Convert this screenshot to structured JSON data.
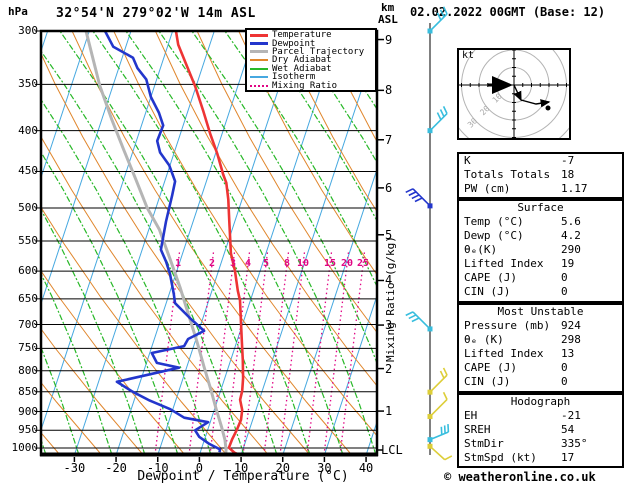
{
  "header": {
    "pressure_unit": "hPa",
    "title": "32°54'N 279°02'W 14m ASL",
    "alt_unit_km": "km",
    "alt_unit_asl": "ASL",
    "datetime": "02.02.2022 00GMT (Base: 12)"
  },
  "axes": {
    "pressure_ticks": [
      300,
      350,
      400,
      450,
      500,
      550,
      600,
      650,
      700,
      750,
      800,
      850,
      900,
      950,
      1000
    ],
    "temp_ticks": [
      -30,
      -20,
      -10,
      0,
      10,
      20,
      30,
      40
    ],
    "temp_axis_title": "Dewpoint / Temperature (°C)",
    "km_ticks": [
      1,
      2,
      3,
      4,
      5,
      6,
      7,
      8,
      9
    ],
    "lcl_label": "LCL",
    "mixing_axis_title": "Mixing Ratio (g/kg)",
    "mixing_ratio_labels": [
      "1",
      "2",
      "3",
      "4",
      "5",
      "8",
      "10",
      "15",
      "20",
      "25"
    ]
  },
  "legend": {
    "items": [
      {
        "label": "Temperature",
        "color_key": "temperature",
        "style": "thick"
      },
      {
        "label": "Dewpoint",
        "color_key": "dewpoint",
        "style": "thick"
      },
      {
        "label": "Parcel Trajectory",
        "color_key": "parcel",
        "style": "thick"
      },
      {
        "label": "Dry Adiabat",
        "color_key": "dry_adiabat",
        "style": "thin"
      },
      {
        "label": "Wet Adiabat",
        "color_key": "wet_adiabat",
        "style": "thin"
      },
      {
        "label": "Isotherm",
        "color_key": "isotherm",
        "style": "thin"
      },
      {
        "label": "Mixing Ratio",
        "color_key": "mixing_ratio",
        "style": "dotted"
      }
    ]
  },
  "chart_data": {
    "type": "line",
    "variant": "skew-t-log-p",
    "xlabel": "Dewpoint / Temperature (°C)",
    "x_range_C": [
      -35,
      42
    ],
    "pressure_range_hPa": [
      300,
      1020
    ],
    "grid": true,
    "legend_position": "top-right",
    "series": [
      {
        "name": "Temperature",
        "units": [
          "hPa",
          "degC"
        ],
        "points": [
          [
            295,
            -39.9
          ],
          [
            312,
            -37.6
          ],
          [
            333,
            -33.6
          ],
          [
            352,
            -30.2
          ],
          [
            378,
            -26.3
          ],
          [
            404,
            -22.8
          ],
          [
            428,
            -19.5
          ],
          [
            454,
            -16.5
          ],
          [
            465,
            -15.1
          ],
          [
            488,
            -13.3
          ],
          [
            517,
            -11.5
          ],
          [
            570,
            -8.4
          ],
          [
            599,
            -6.1
          ],
          [
            635,
            -3.8
          ],
          [
            653,
            -2.5
          ],
          [
            692,
            -0.7
          ],
          [
            733,
            1.1
          ],
          [
            776,
            2.9
          ],
          [
            817,
            4.4
          ],
          [
            848,
            5.2
          ],
          [
            870,
            5.4
          ],
          [
            896,
            6.7
          ],
          [
            922,
            7.2
          ],
          [
            949,
            7.0
          ],
          [
            976,
            6.6
          ],
          [
            999,
            6.5
          ],
          [
            1014,
            8.3
          ],
          [
            1019,
            9.5
          ]
        ]
      },
      {
        "name": "Dewpoint",
        "units": [
          "hPa",
          "degC"
        ],
        "points": [
          [
            298,
            -56.7
          ],
          [
            314,
            -53.0
          ],
          [
            324,
            -47.4
          ],
          [
            334,
            -45.5
          ],
          [
            345,
            -42.5
          ],
          [
            363,
            -40.0
          ],
          [
            380,
            -36.8
          ],
          [
            394,
            -34.8
          ],
          [
            412,
            -35.0
          ],
          [
            426,
            -33.4
          ],
          [
            442,
            -30.2
          ],
          [
            463,
            -27.5
          ],
          [
            482,
            -27.1
          ],
          [
            520,
            -26.5
          ],
          [
            564,
            -25.5
          ],
          [
            584,
            -23.3
          ],
          [
            605,
            -21.4
          ],
          [
            641,
            -18.9
          ],
          [
            658,
            -17.9
          ],
          [
            689,
            -12.8
          ],
          [
            713,
            -8.7
          ],
          [
            730,
            -11.9
          ],
          [
            745,
            -12.3
          ],
          [
            760,
            -19.5
          ],
          [
            782,
            -17.5
          ],
          [
            793,
            -11.8
          ],
          [
            826,
            -25.6
          ],
          [
            850,
            -21.0
          ],
          [
            872,
            -16.2
          ],
          [
            894,
            -10.6
          ],
          [
            916,
            -6.6
          ],
          [
            928,
            -0.5
          ],
          [
            950,
            -3.0
          ],
          [
            968,
            -1.5
          ],
          [
            988,
            1.5
          ],
          [
            1004,
            4.5
          ],
          [
            1012,
            4.6
          ]
        ]
      },
      {
        "name": "Parcel Trajectory",
        "units": [
          "hPa",
          "degC"
        ],
        "points": [
          [
            300,
            -60.8
          ],
          [
            351,
            -53.2
          ],
          [
            388,
            -47.5
          ],
          [
            423,
            -42.3
          ],
          [
            461,
            -37.0
          ],
          [
            500,
            -32.1
          ],
          [
            532,
            -27.5
          ],
          [
            580,
            -22.5
          ],
          [
            629,
            -17.9
          ],
          [
            682,
            -13.6
          ],
          [
            735,
            -9.6
          ],
          [
            789,
            -6.0
          ],
          [
            847,
            -2.3
          ],
          [
            894,
            0.4
          ],
          [
            939,
            3.0
          ],
          [
            976,
            4.9
          ],
          [
            1005,
            6.0
          ],
          [
            1015,
            6.2
          ]
        ]
      }
    ]
  },
  "wind_barbs": [
    {
      "p_hPa": 300,
      "color_key": "barb_cyan",
      "dir": "NE",
      "ticks": 3
    },
    {
      "p_hPa": 400,
      "color_key": "barb_cyan",
      "dir": "NE",
      "ticks": 3
    },
    {
      "p_hPa": 497,
      "color_key": "barb_blue",
      "dir": "NW",
      "ticks": 4
    },
    {
      "p_hPa": 709,
      "color_key": "barb_cyan",
      "dir": "NW",
      "ticks": 3
    },
    {
      "p_hPa": 851,
      "color_key": "barb_yellow",
      "dir": "NE",
      "ticks": 2
    },
    {
      "p_hPa": 913,
      "color_key": "barb_yellow",
      "dir": "NE",
      "ticks": 1
    },
    {
      "p_hPa": 976,
      "color_key": "barb_cyan",
      "dir": "ENE",
      "ticks": 3
    },
    {
      "p_hPa": 995,
      "color_key": "barb_yellow",
      "dir": "SE",
      "ticks": 1
    }
  ],
  "hodograph": {
    "unit_label": "kt",
    "rings_kt": [
      10,
      20,
      30,
      40
    ],
    "ring_labels": [
      "10",
      "20",
      "30"
    ],
    "storm_dir_deg": 335,
    "storm_speed_kt": 17
  },
  "panels": [
    {
      "title": "",
      "rows": [
        {
          "label": "K",
          "value": "-7"
        },
        {
          "label": "Totals Totals",
          "value": "18"
        },
        {
          "label": "PW (cm)",
          "value": "1.17"
        }
      ]
    },
    {
      "title": "Surface",
      "rows": [
        {
          "label": "Temp (°C)",
          "value": "5.6"
        },
        {
          "label": "Dewp (°C)",
          "value": "4.2"
        },
        {
          "label": "θₑ(K)",
          "value": "290"
        },
        {
          "label": "Lifted Index",
          "value": "19"
        },
        {
          "label": "CAPE (J)",
          "value": "0"
        },
        {
          "label": "CIN (J)",
          "value": "0"
        }
      ]
    },
    {
      "title": "Most Unstable",
      "rows": [
        {
          "label": "Pressure (mb)",
          "value": "924"
        },
        {
          "label": "θₑ (K)",
          "value": "298"
        },
        {
          "label": "Lifted Index",
          "value": "13"
        },
        {
          "label": "CAPE (J)",
          "value": "0"
        },
        {
          "label": "CIN (J)",
          "value": "0"
        }
      ]
    },
    {
      "title": "Hodograph",
      "rows": [
        {
          "label": "EH",
          "value": "-21"
        },
        {
          "label": "SREH",
          "value": "54"
        },
        {
          "label": "StmDir",
          "value": "335°"
        },
        {
          "label": "StmSpd (kt)",
          "value": "17"
        }
      ]
    }
  ],
  "footer": {
    "copyright": "© weatheronline.co.uk"
  },
  "colors": {
    "temperature": "#ee3434",
    "dewpoint": "#2336cc",
    "parcel": "#b5b5b5",
    "dry_adiabat": "#e0862c",
    "wet_adiabat": "#28b828",
    "isotherm": "#46a8e0",
    "mixing_ratio": "#e00684",
    "barb_cyan": "#38bede",
    "barb_blue": "#2336cc",
    "barb_yellow": "#ddce38",
    "grid": "#000000",
    "hodo_ring": "#b4b4b4"
  }
}
